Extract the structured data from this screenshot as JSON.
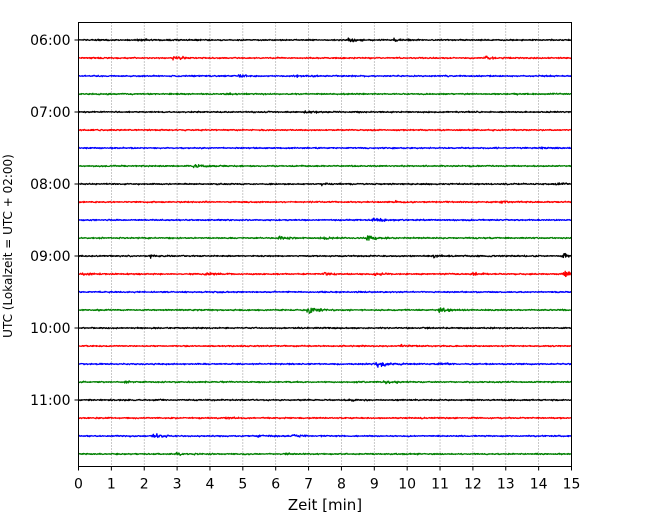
{
  "chart_data": {
    "type": "line",
    "title": "",
    "xlabel": "Zeit  [min]",
    "ylabel": "UTC (Lokalzeit = UTC + 02:00)",
    "xlim": [
      0,
      15
    ],
    "x_ticks": [
      0,
      1,
      2,
      3,
      4,
      5,
      6,
      7,
      8,
      9,
      10,
      11,
      12,
      13,
      14,
      15
    ],
    "y_tick_labels": [
      "06:00",
      "07:00",
      "08:00",
      "09:00",
      "10:00",
      "11:00"
    ],
    "trace_interval_min": 15,
    "grid": "vertical dotted at every minute",
    "colors": [
      "#000000",
      "#ff0000",
      "#0000ff",
      "#008000"
    ],
    "series": [
      {
        "start": "06:00",
        "color": "#000000",
        "events": [
          {
            "x": 8.2,
            "amp": 2.0
          },
          {
            "x": 9.6,
            "amp": 1.5
          },
          {
            "x": 1.8,
            "amp": 1.1
          }
        ]
      },
      {
        "start": "06:15",
        "color": "#ff0000",
        "events": [
          {
            "x": 2.9,
            "amp": 3.5
          },
          {
            "x": 12.4,
            "amp": 2.5
          }
        ]
      },
      {
        "start": "06:30",
        "color": "#0000ff",
        "events": [
          {
            "x": 4.9,
            "amp": 2.0
          },
          {
            "x": 6.6,
            "amp": 1.0
          }
        ]
      },
      {
        "start": "06:45",
        "color": "#008000",
        "events": [
          {
            "x": 4.5,
            "amp": 1.0
          },
          {
            "x": 13.3,
            "amp": 1.3
          }
        ]
      },
      {
        "start": "07:00",
        "color": "#000000",
        "events": [
          {
            "x": 6.9,
            "amp": 1.8
          }
        ]
      },
      {
        "start": "07:15",
        "color": "#ff0000",
        "events": []
      },
      {
        "start": "07:30",
        "color": "#0000ff",
        "events": [
          {
            "x": 14.0,
            "amp": 1.2
          }
        ]
      },
      {
        "start": "07:45",
        "color": "#008000",
        "events": [
          {
            "x": 3.5,
            "amp": 2.2
          }
        ]
      },
      {
        "start": "08:00",
        "color": "#000000",
        "events": [
          {
            "x": 7.4,
            "amp": 1.4
          },
          {
            "x": 14.6,
            "amp": 1.5
          }
        ]
      },
      {
        "start": "08:15",
        "color": "#ff0000",
        "events": [
          {
            "x": 12.8,
            "amp": 1.5
          },
          {
            "x": 9.6,
            "amp": 1.0
          }
        ]
      },
      {
        "start": "08:30",
        "color": "#0000ff",
        "events": [
          {
            "x": 9.0,
            "amp": 3.0
          }
        ]
      },
      {
        "start": "08:45",
        "color": "#008000",
        "events": [
          {
            "x": 8.8,
            "amp": 3.5
          },
          {
            "x": 7.4,
            "amp": 2.0
          },
          {
            "x": 6.1,
            "amp": 1.5
          }
        ]
      },
      {
        "start": "09:00",
        "color": "#000000",
        "events": [
          {
            "x": 14.8,
            "amp": 5.0
          },
          {
            "x": 10.8,
            "amp": 2.0
          },
          {
            "x": 2.2,
            "amp": 1.8
          }
        ]
      },
      {
        "start": "09:15",
        "color": "#ff0000",
        "events": [
          {
            "x": 14.8,
            "amp": 4.5
          },
          {
            "x": 0.1,
            "amp": 2.0
          },
          {
            "x": 3.9,
            "amp": 1.5
          },
          {
            "x": 7.5,
            "amp": 1.3
          },
          {
            "x": 9.0,
            "amp": 1.6
          },
          {
            "x": 12.0,
            "amp": 1.5
          }
        ]
      },
      {
        "start": "09:30",
        "color": "#0000ff",
        "events": [
          {
            "x": 4.1,
            "amp": 1.0
          }
        ]
      },
      {
        "start": "09:45",
        "color": "#008000",
        "events": [
          {
            "x": 7.0,
            "amp": 5.0
          },
          {
            "x": 11.0,
            "amp": 4.0
          }
        ]
      },
      {
        "start": "10:00",
        "color": "#000000",
        "events": []
      },
      {
        "start": "10:15",
        "color": "#ff0000",
        "events": [
          {
            "x": 9.8,
            "amp": 1.2
          }
        ]
      },
      {
        "start": "10:30",
        "color": "#0000ff",
        "events": [
          {
            "x": 9.1,
            "amp": 5.0
          },
          {
            "x": 11.0,
            "amp": 1.5
          }
        ]
      },
      {
        "start": "10:45",
        "color": "#008000",
        "events": [
          {
            "x": 9.3,
            "amp": 3.0
          },
          {
            "x": 1.4,
            "amp": 1.0
          }
        ]
      },
      {
        "start": "11:00",
        "color": "#000000",
        "events": [
          {
            "x": 8.2,
            "amp": 1.4
          }
        ]
      },
      {
        "start": "11:15",
        "color": "#ff0000",
        "events": [
          {
            "x": 4.5,
            "amp": 1.0
          }
        ]
      },
      {
        "start": "11:30",
        "color": "#0000ff",
        "events": [
          {
            "x": 2.3,
            "amp": 3.0
          },
          {
            "x": 5.5,
            "amp": 2.0
          },
          {
            "x": 6.5,
            "amp": 1.5
          }
        ]
      },
      {
        "start": "11:45",
        "color": "#008000",
        "events": [
          {
            "x": 3.0,
            "amp": 1.2
          },
          {
            "x": 6.2,
            "amp": 1.0
          }
        ]
      }
    ]
  }
}
